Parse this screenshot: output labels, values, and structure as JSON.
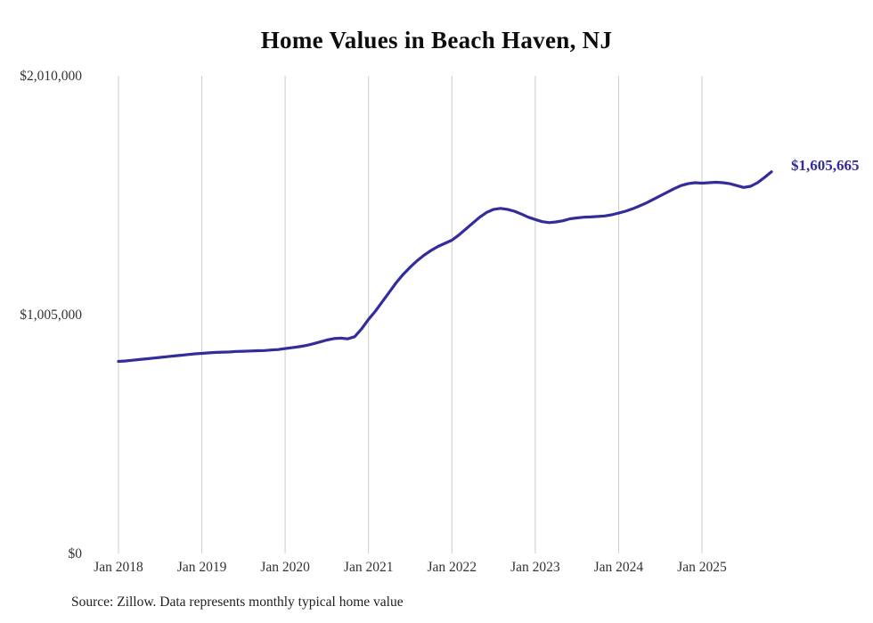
{
  "title": "Home Values in Beach Haven, NJ",
  "end_label": "$1,605,665",
  "source": "Source: Zillow. Data represents monthly typical home value",
  "colors": {
    "line": "#332d9b",
    "grid": "#cccccc",
    "tick_text": "#333333",
    "end_label": "#332d9b"
  },
  "chart_data": {
    "type": "line",
    "title": "Home Values in Beach Haven, NJ",
    "x_start": "Jan 2018",
    "x_end": "Nov 2025",
    "frequency": "monthly",
    "x_tick_labels": [
      "Jan 2018",
      "Jan 2019",
      "Jan 2020",
      "Jan 2021",
      "Jan 2022",
      "Jan 2023",
      "Jan 2024",
      "Jan 2025"
    ],
    "x_tick_month_indices": [
      0,
      12,
      24,
      36,
      48,
      60,
      72,
      84
    ],
    "y_tick_labels": [
      "$0",
      "$1,005,000",
      "$2,010,000"
    ],
    "y_tick_values": [
      0,
      1005000,
      2010000
    ],
    "ylim": [
      0,
      2010000
    ],
    "grid": "vertical-only",
    "legend": false,
    "ylabel": "",
    "xlabel": "",
    "final_value": 1605665,
    "final_value_label": "$1,605,665",
    "values": [
      808000,
      810000,
      813000,
      816000,
      819000,
      822000,
      825000,
      828000,
      831000,
      834000,
      837000,
      840000,
      842000,
      844000,
      846000,
      847000,
      848000,
      850000,
      851000,
      852000,
      853000,
      854000,
      856000,
      858000,
      862000,
      866000,
      870000,
      875000,
      882000,
      890000,
      898000,
      904000,
      906000,
      903000,
      912000,
      945000,
      985000,
      1020000,
      1060000,
      1100000,
      1140000,
      1175000,
      1205000,
      1232000,
      1255000,
      1275000,
      1292000,
      1305000,
      1318000,
      1340000,
      1365000,
      1390000,
      1415000,
      1435000,
      1448000,
      1452000,
      1448000,
      1440000,
      1428000,
      1415000,
      1405000,
      1396000,
      1392000,
      1395000,
      1400000,
      1408000,
      1412000,
      1415000,
      1416000,
      1418000,
      1420000,
      1425000,
      1432000,
      1440000,
      1450000,
      1462000,
      1475000,
      1490000,
      1505000,
      1520000,
      1535000,
      1548000,
      1556000,
      1560000,
      1558000,
      1560000,
      1562000,
      1560000,
      1556000,
      1548000,
      1540000,
      1545000,
      1560000,
      1582000,
      1605665
    ]
  }
}
